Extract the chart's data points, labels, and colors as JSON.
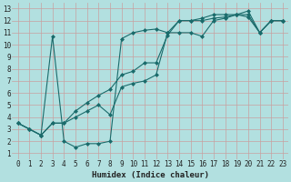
{
  "xlabel": "Humidex (Indice chaleur)",
  "bg_color": "#b2e0e0",
  "grid_color": "#d8f0f0",
  "line_color": "#1a6b6b",
  "xlim": [
    -0.5,
    23.5
  ],
  "ylim": [
    0.5,
    13.5
  ],
  "xticks": [
    0,
    1,
    2,
    3,
    4,
    5,
    6,
    7,
    8,
    9,
    10,
    11,
    12,
    13,
    14,
    15,
    16,
    17,
    18,
    19,
    20,
    21,
    22,
    23
  ],
  "yticks": [
    1,
    2,
    3,
    4,
    5,
    6,
    7,
    8,
    9,
    10,
    11,
    12,
    13
  ],
  "series": [
    {
      "x": [
        0,
        1,
        2,
        3,
        4,
        5,
        6,
        7,
        8,
        9,
        10,
        11,
        12,
        13,
        14,
        15,
        16,
        17,
        18,
        19,
        20,
        21,
        22,
        23
      ],
      "y": [
        3.5,
        3.0,
        2.5,
        10.7,
        2.0,
        1.5,
        1.8,
        1.8,
        2.0,
        10.5,
        11.0,
        11.2,
        11.3,
        11.0,
        11.0,
        11.0,
        10.7,
        12.0,
        12.2,
        12.5,
        12.8,
        11.0,
        12.0,
        12.0
      ]
    },
    {
      "x": [
        0,
        1,
        2,
        3,
        4,
        5,
        6,
        7,
        8,
        9,
        10,
        11,
        12,
        13,
        14,
        15,
        16,
        17,
        18,
        19,
        20,
        21,
        22,
        23
      ],
      "y": [
        3.5,
        3.0,
        2.5,
        3.5,
        3.5,
        4.0,
        4.5,
        5.0,
        4.2,
        6.5,
        6.8,
        7.0,
        7.5,
        11.0,
        12.0,
        12.0,
        12.0,
        12.2,
        12.3,
        12.5,
        12.5,
        11.0,
        12.0,
        12.0
      ]
    },
    {
      "x": [
        0,
        1,
        2,
        3,
        4,
        5,
        6,
        7,
        8,
        9,
        10,
        11,
        12,
        13,
        14,
        15,
        16,
        17,
        18,
        19,
        20,
        21,
        22,
        23
      ],
      "y": [
        3.5,
        3.0,
        2.5,
        3.5,
        3.5,
        4.5,
        5.2,
        5.8,
        6.3,
        7.5,
        7.8,
        8.5,
        8.5,
        10.8,
        12.0,
        12.0,
        12.2,
        12.5,
        12.5,
        12.5,
        12.3,
        11.0,
        12.0,
        12.0
      ]
    }
  ]
}
